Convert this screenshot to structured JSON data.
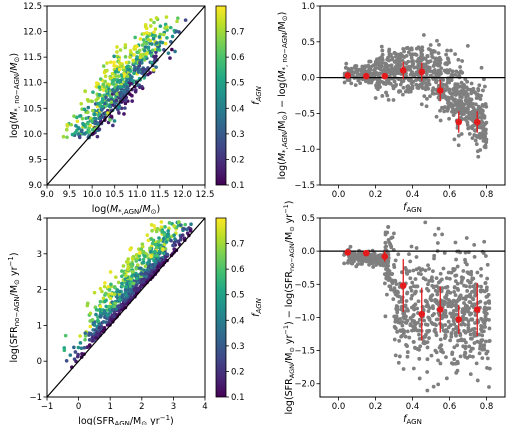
{
  "chart_data": [
    {
      "id": "p1",
      "type": "scatter",
      "xlabel": "log(M*,AGN/M⊙)",
      "ylabel": "log(M*,no−AGN/M⊙)",
      "xlim": [
        9.0,
        12.5
      ],
      "ylim": [
        9.0,
        12.5
      ],
      "xticks": [
        "9.0",
        "9.5",
        "10.0",
        "10.5",
        "11.0",
        "11.5",
        "12.0",
        "12.5"
      ],
      "yticks": [
        "9.0",
        "9.5",
        "10.0",
        "10.5",
        "11.0",
        "11.5",
        "12.0",
        "12.5"
      ],
      "one_to_one_line": true,
      "colorbar": {
        "label": "fAGN",
        "range": [
          0.1,
          0.8
        ],
        "ticks": [
          "0.1",
          "0.2",
          "0.3",
          "0.4",
          "0.5",
          "0.6",
          "0.7"
        ],
        "colormap": "viridis"
      },
      "points_note": "~700 galaxies colored by fAGN; approximated cloud"
    },
    {
      "id": "p2",
      "type": "scatter",
      "xlabel": "fAGN",
      "ylabel": "log(M*,AGN/M⊙) − log(M*,no−AGN/M⊙)",
      "xlim": [
        -0.1,
        0.9
      ],
      "ylim": [
        -1.5,
        1.0
      ],
      "xticks": [
        "0.0",
        "0.2",
        "0.4",
        "0.6",
        "0.8"
      ],
      "yticks": [
        "−1.5",
        "−1.0",
        "−0.5",
        "0.0",
        "0.5",
        "1.0"
      ],
      "zero_line": true,
      "point_color": "#7f7f7f",
      "binned_color": "#e41a1c",
      "binned": [
        {
          "x": 0.05,
          "y": 0.03,
          "err": 0.0
        },
        {
          "x": 0.15,
          "y": 0.02,
          "err": 0.0
        },
        {
          "x": 0.25,
          "y": 0.02,
          "err": 0.0
        },
        {
          "x": 0.35,
          "y": 0.1,
          "err": 0.12
        },
        {
          "x": 0.45,
          "y": 0.08,
          "err": 0.13
        },
        {
          "x": 0.55,
          "y": -0.18,
          "err": 0.15
        },
        {
          "x": 0.65,
          "y": -0.62,
          "err": 0.15
        },
        {
          "x": 0.75,
          "y": -0.62,
          "err": 0.15
        }
      ]
    },
    {
      "id": "p3",
      "type": "scatter",
      "xlabel": "log(SFRAGN/M⊙ yr−1)",
      "ylabel": "log(SFRno−AGN/M⊙ yr−1)",
      "xlim": [
        -1,
        4
      ],
      "ylim": [
        -1,
        4
      ],
      "xticks": [
        "−1",
        "0",
        "1",
        "2",
        "3",
        "4"
      ],
      "yticks": [
        "−1",
        "0",
        "1",
        "2",
        "3",
        "4"
      ],
      "one_to_one_line": true,
      "colorbar": {
        "label": "fAGN",
        "range": [
          0.1,
          0.8
        ],
        "ticks": [
          "0.1",
          "0.2",
          "0.3",
          "0.4",
          "0.5",
          "0.6",
          "0.7"
        ],
        "colormap": "viridis"
      },
      "points_note": "~700 galaxies colored by fAGN; approximated cloud"
    },
    {
      "id": "p4",
      "type": "scatter",
      "xlabel": "fAGN",
      "ylabel": "log(SFRAGN/M⊙ yr−1) − log(SFRno−AGN/M⊙ yr−1)",
      "xlim": [
        -0.1,
        0.9
      ],
      "ylim": [
        -2.2,
        0.5
      ],
      "xticks": [
        "0.0",
        "0.2",
        "0.4",
        "0.6",
        "0.8"
      ],
      "yticks": [
        "−2.0",
        "−1.5",
        "−1.0",
        "−0.5",
        "0.0",
        "0.5"
      ],
      "zero_line": true,
      "point_color": "#7f7f7f",
      "binned_color": "#e41a1c",
      "binned": [
        {
          "x": 0.05,
          "y": -0.02,
          "err": 0.0
        },
        {
          "x": 0.15,
          "y": -0.03,
          "err": 0.0
        },
        {
          "x": 0.25,
          "y": -0.08,
          "err": 0.08
        },
        {
          "x": 0.35,
          "y": -0.52,
          "err": 0.4
        },
        {
          "x": 0.45,
          "y": -0.95,
          "err": 0.4
        },
        {
          "x": 0.55,
          "y": -0.88,
          "err": 0.35
        },
        {
          "x": 0.65,
          "y": -1.03,
          "err": 0.22
        },
        {
          "x": 0.75,
          "y": -0.88,
          "err": 0.4
        }
      ]
    }
  ]
}
